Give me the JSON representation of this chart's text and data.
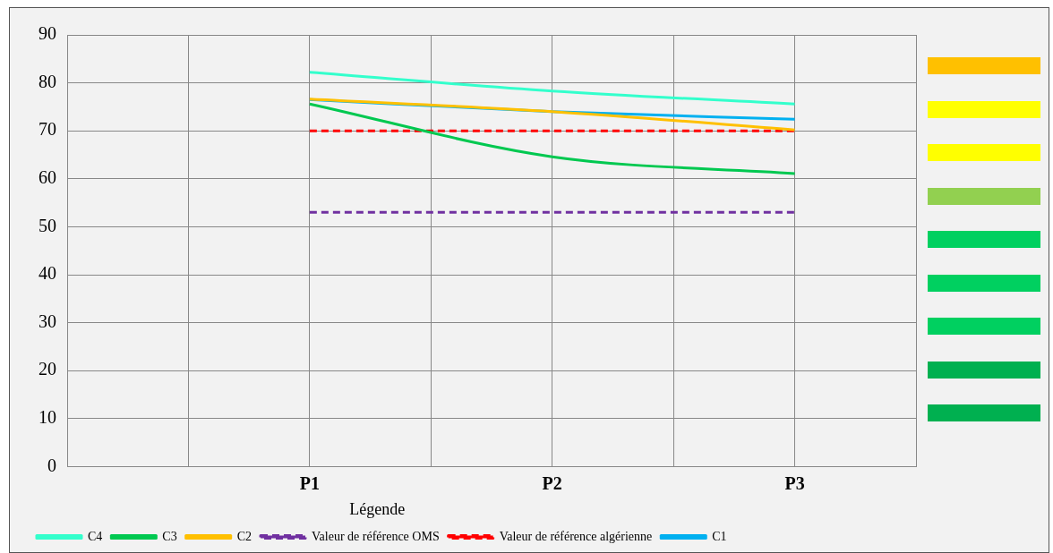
{
  "chart_data": {
    "type": "line",
    "categories": [
      null,
      null,
      "P1",
      null,
      "P2",
      null,
      "P3",
      null
    ],
    "series": [
      {
        "name": "C1",
        "color": "#00b0f0",
        "values": [
          null,
          null,
          76.5,
          null,
          74,
          null,
          72.4,
          null
        ]
      },
      {
        "name": "Valeur de référence algérienne",
        "color": "#ff0000",
        "line_style": "dashed",
        "values": [
          null,
          null,
          70,
          null,
          70,
          null,
          70,
          null
        ]
      },
      {
        "name": "Valeur de référence OMS",
        "color": "#7030a0",
        "line_style": "dashed",
        "values": [
          null,
          null,
          53,
          null,
          53,
          null,
          53,
          null
        ]
      },
      {
        "name": "C2",
        "color": "#ffc000",
        "values": [
          null,
          null,
          76.6,
          null,
          74,
          null,
          70.2,
          null
        ]
      },
      {
        "name": "C3",
        "color": "#00c850",
        "values": [
          null,
          null,
          75.6,
          null,
          64.6,
          null,
          61.1,
          null
        ]
      },
      {
        "name": "C4",
        "color": "#33ffcc",
        "values": [
          null,
          null,
          82.2,
          null,
          78.3,
          null,
          75.6,
          null
        ]
      }
    ],
    "ylim": [
      0,
      90
    ],
    "yticks": [
      0,
      10,
      20,
      30,
      40,
      50,
      60,
      70,
      80,
      90
    ],
    "grid": true,
    "legend": "bottom",
    "legend_title": "Légende",
    "marker": "none",
    "line_style": "solid"
  }
}
